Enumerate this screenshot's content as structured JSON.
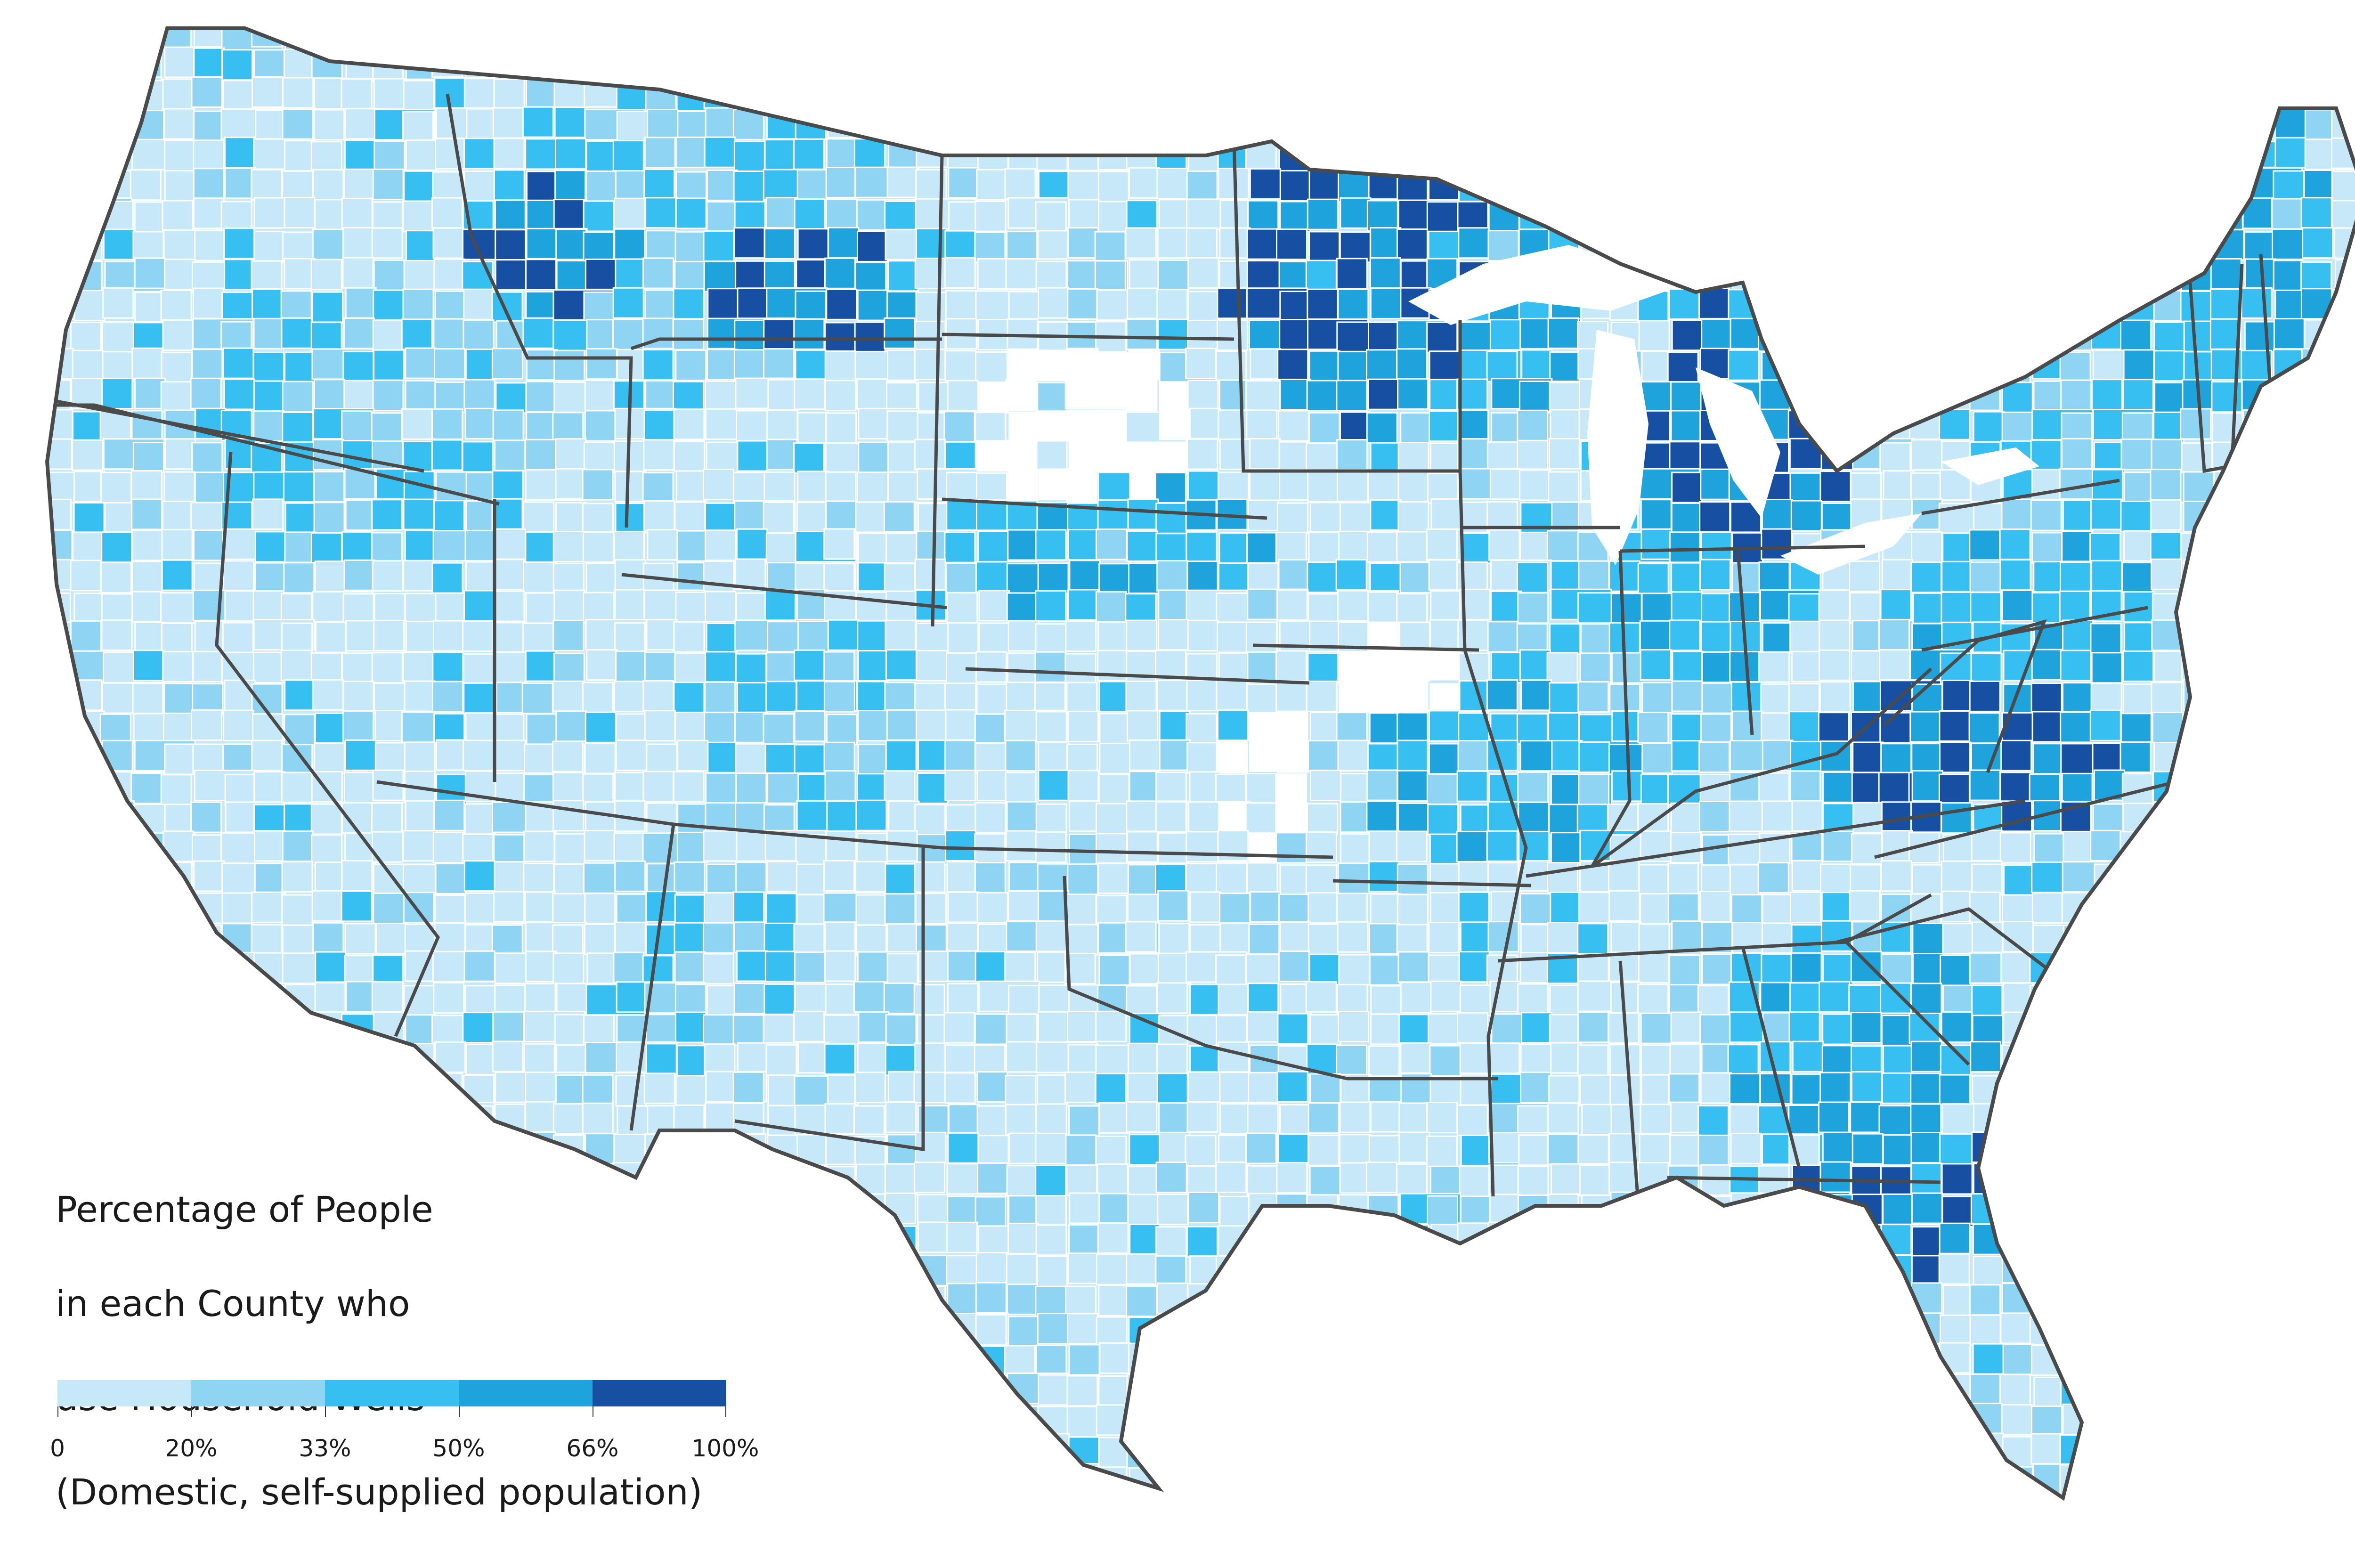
{
  "legend": {
    "title_lines": [
      "Percentage of People",
      "in each County who",
      "use Household Wells",
      "(Domestic, self-supplied population)"
    ],
    "bins": [
      {
        "min": 0,
        "max": 20,
        "color": "#c6e8f8"
      },
      {
        "min": 20,
        "max": 33,
        "color": "#8fd4f2"
      },
      {
        "min": 33,
        "max": 50,
        "color": "#36bff0"
      },
      {
        "min": 50,
        "max": 66,
        "color": "#1ea3dd"
      },
      {
        "min": 66,
        "max": 100,
        "color": "#1750a2"
      }
    ],
    "tick_labels": [
      "0",
      "20%",
      "33%",
      "50%",
      "66%",
      "100%"
    ]
  },
  "colors": {
    "no_data": "#ffffff",
    "state_border": "#4a4a4a",
    "county_border": "#ffffff"
  }
}
